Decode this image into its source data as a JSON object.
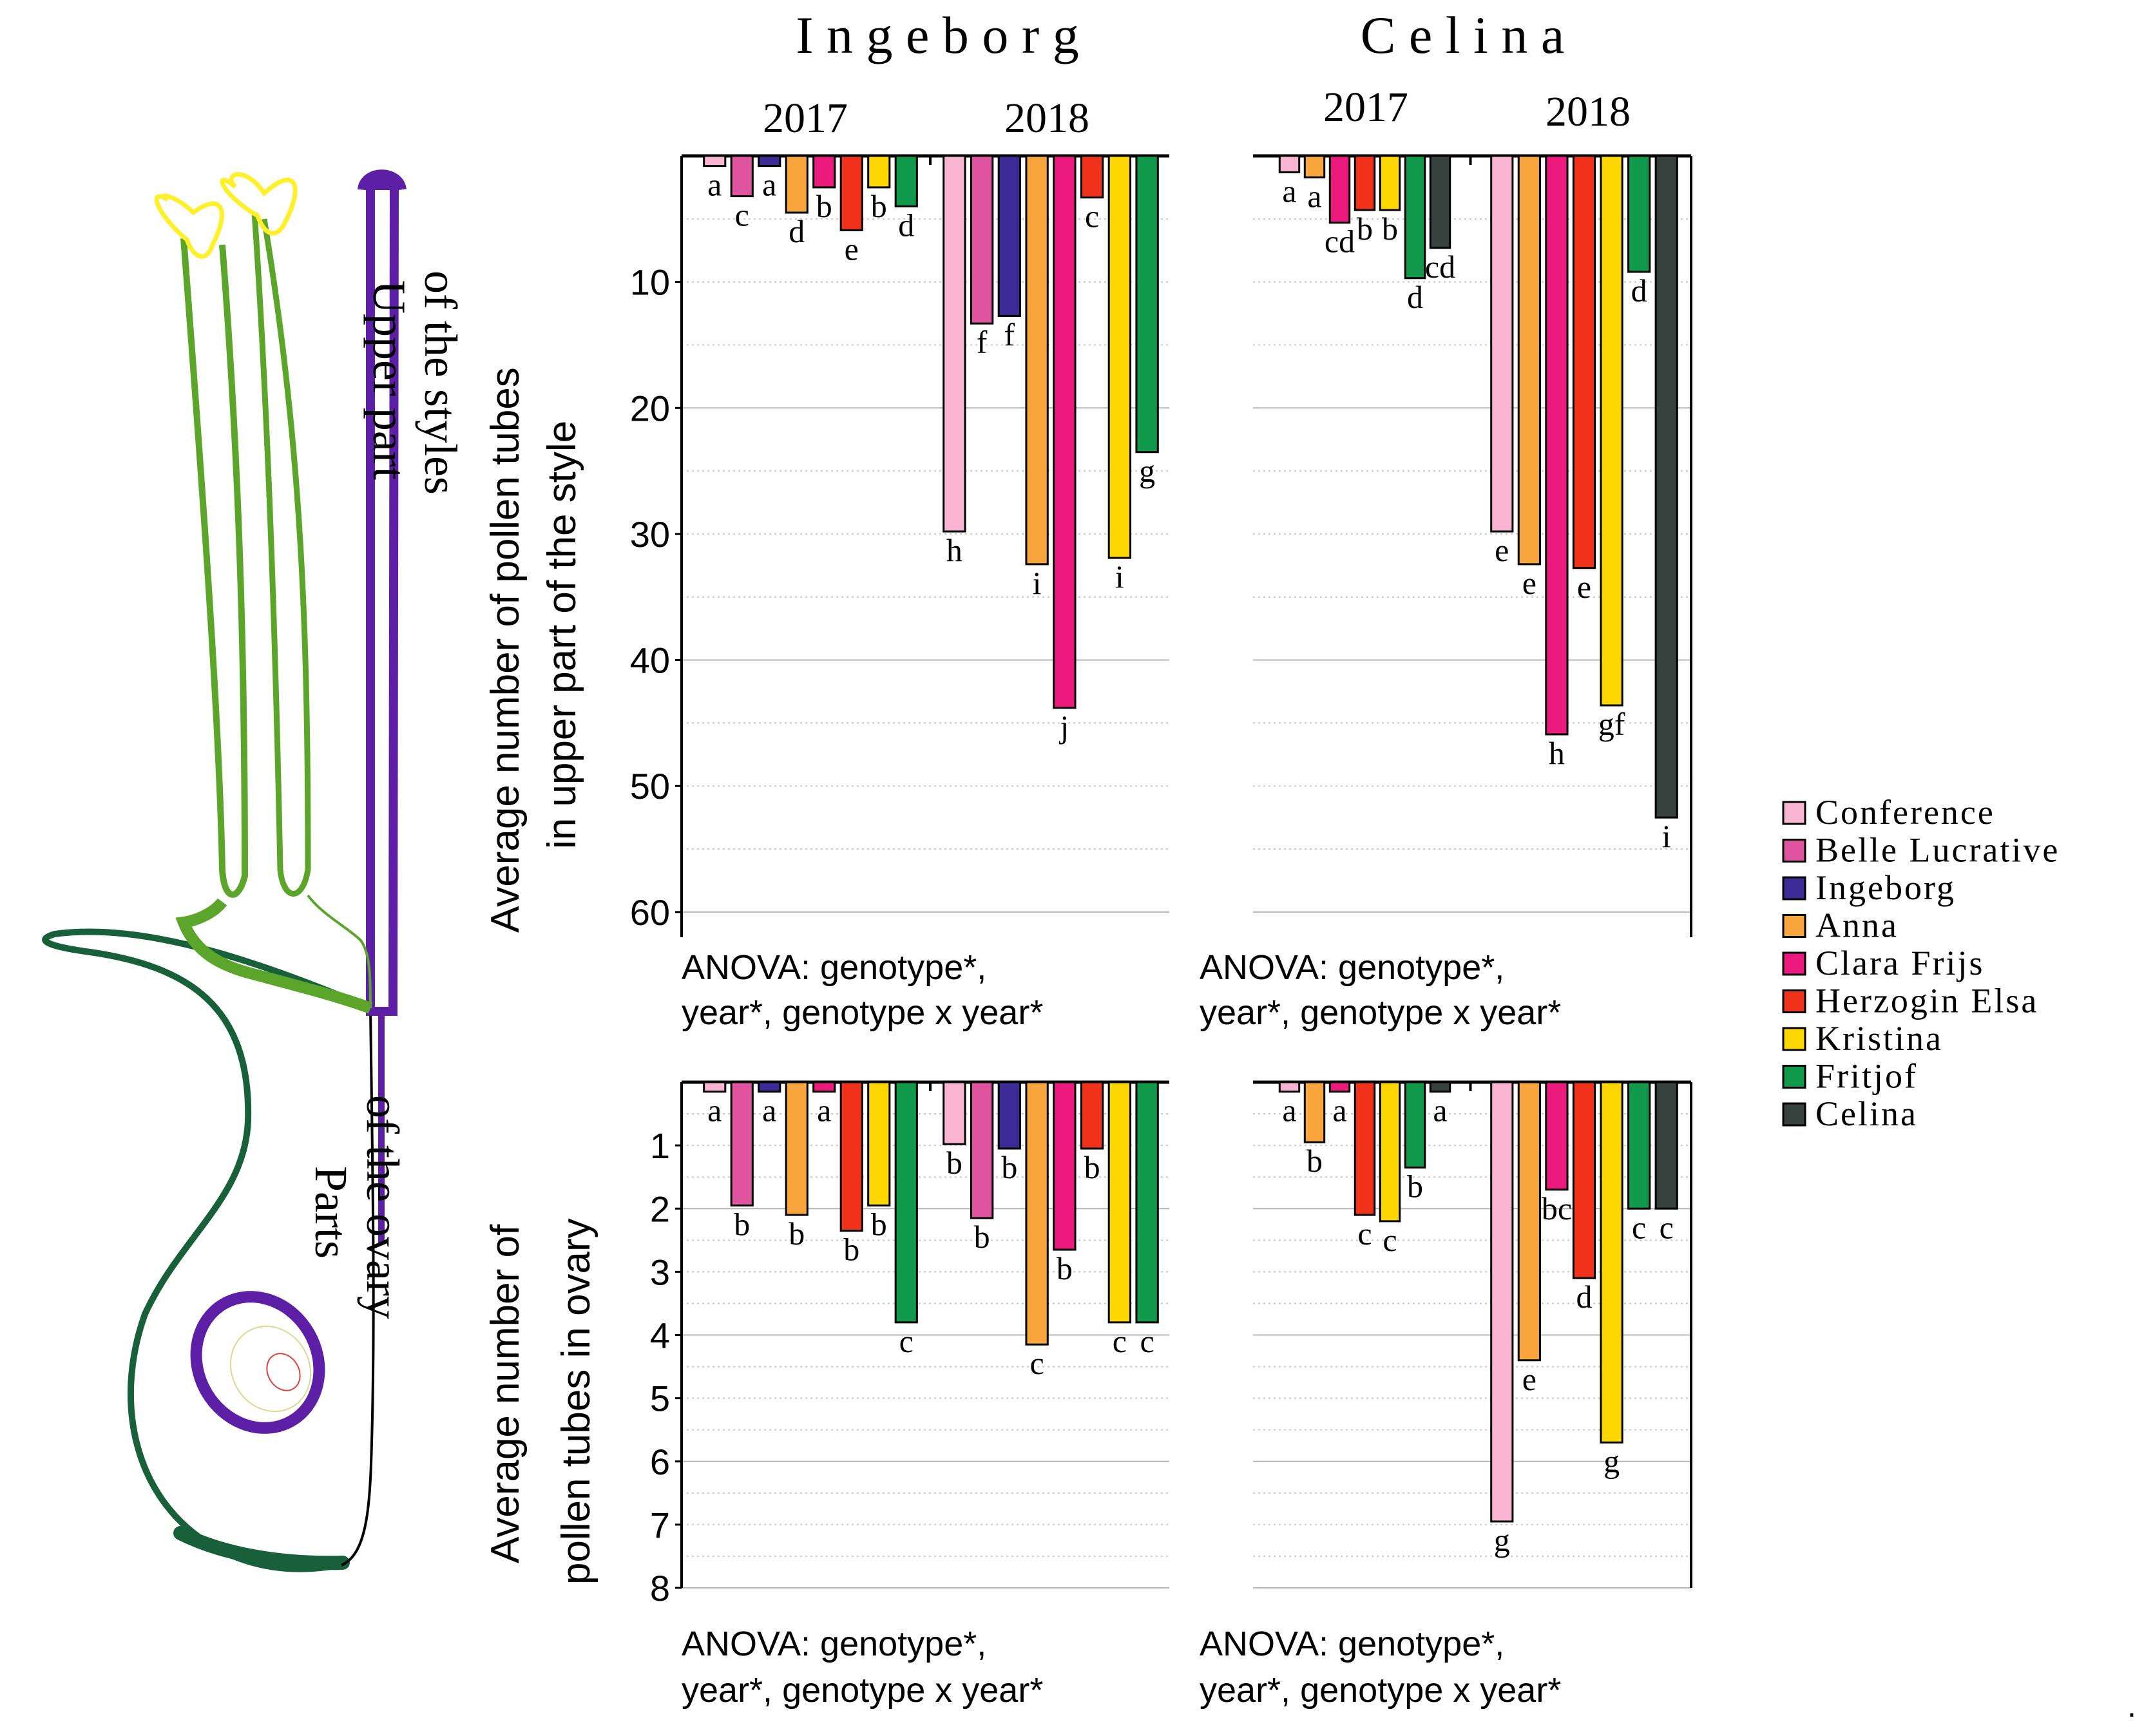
{
  "figure": {
    "cultivar_titles": [
      "I n g e b o r g",
      "C e l i n a"
    ],
    "year_labels": [
      "2017",
      "2018"
    ],
    "y_label_top": [
      "Average number of pollen tubes",
      "in upper part of the style"
    ],
    "y_label_bottom": [
      "Average number of",
      "pollen tubes in ovary"
    ],
    "diagram_labels": {
      "upper_style": [
        "Upper part",
        "of the styles"
      ],
      "ovary": [
        "Parts",
        "of the ovary"
      ]
    },
    "anova_text": [
      "ANOVA: genotype*,",
      "year*, genotype x year*"
    ],
    "trailing_mark": "."
  },
  "legend": [
    {
      "name": "Conference",
      "color": "#f9b4d1"
    },
    {
      "name": "Belle Lucrative",
      "color": "#e0539f"
    },
    {
      "name": "Ingeborg",
      "color": "#3c2a96"
    },
    {
      "name": "Anna",
      "color": "#f7a53c"
    },
    {
      "name": "Clara Frijs",
      "color": "#ec1a7d"
    },
    {
      "name": "Herzogin Elsa",
      "color": "#f0321b"
    },
    {
      "name": "Kristina",
      "color": "#ffd700"
    },
    {
      "name": "Fritjof",
      "color": "#10994a"
    },
    {
      "name": "Celina",
      "color": "#37423f"
    }
  ],
  "chart_data": [
    {
      "id": "ingeborg-style",
      "type": "bar",
      "title": "I n g e b o r g",
      "ylabel": "Average number of pollen tubes in upper part of the style",
      "ylim": [
        0,
        62
      ],
      "y_axis_inverted": true,
      "yticks": [
        10,
        20,
        30,
        40,
        50,
        60
      ],
      "groups": [
        "2017",
        "2018"
      ],
      "series": [
        "Conference",
        "Belle Lucrative",
        "Ingeborg",
        "Anna",
        "Clara Frijs",
        "Herzogin Elsa",
        "Kristina",
        "Fritjof"
      ],
      "values": {
        "2017": [
          0.8,
          3.2,
          0.8,
          4.5,
          2.5,
          5.9,
          2.5,
          4.0
        ],
        "2018": [
          29.8,
          13.3,
          12.7,
          32.4,
          43.8,
          3.3,
          31.9,
          23.5
        ]
      },
      "letters": {
        "2017": [
          "a",
          "c",
          "a",
          "d",
          "b",
          "e",
          "b",
          "d"
        ],
        "2018": [
          "h",
          "f",
          "f",
          "i",
          "j",
          "c",
          "i",
          "g"
        ]
      },
      "note": "ANOVA: genotype*, year*, genotype x year*"
    },
    {
      "id": "celina-style",
      "type": "bar",
      "title": "C e l i n a",
      "ylabel": "Average number of pollen tubes in upper part of the style",
      "ylim": [
        0,
        62
      ],
      "y_axis_inverted": true,
      "yticks": [
        10,
        20,
        30,
        40,
        50,
        60
      ],
      "groups": [
        "2017",
        "2018"
      ],
      "series": [
        "Conference",
        "Anna",
        "Clara Frijs",
        "Herzogin Elsa",
        "Kristina",
        "Fritjof",
        "Celina"
      ],
      "values": {
        "2017": [
          1.3,
          1.7,
          5.3,
          4.3,
          4.3,
          9.7,
          7.3
        ],
        "2018": [
          29.8,
          32.4,
          45.9,
          32.7,
          43.6,
          9.2,
          52.5
        ]
      },
      "letters": {
        "2017": [
          "a",
          "a",
          "cd",
          "b",
          "b",
          "d",
          "cd"
        ],
        "2018": [
          "e",
          "e",
          "h",
          "e",
          "gf",
          "d",
          "i"
        ]
      },
      "note": "ANOVA: genotype*, year*, genotype x year*"
    },
    {
      "id": "ingeborg-ovary",
      "type": "bar",
      "ylabel": "Average number of pollen tubes in ovary",
      "ylim": [
        0,
        8
      ],
      "y_axis_inverted": true,
      "yticks": [
        1,
        2,
        3,
        4,
        5,
        6,
        7,
        8
      ],
      "groups": [
        "2017",
        "2018"
      ],
      "series": [
        "Conference",
        "Belle Lucrative",
        "Ingeborg",
        "Anna",
        "Clara Frijs",
        "Herzogin Elsa",
        "Kristina",
        "Fritjof"
      ],
      "values": {
        "2017": [
          0.15,
          1.95,
          0.15,
          2.1,
          0.15,
          2.35,
          1.95,
          3.8
        ],
        "2018": [
          0.98,
          2.15,
          1.05,
          4.15,
          2.65,
          1.05,
          3.8,
          3.8
        ]
      },
      "letters": {
        "2017": [
          "a",
          "b",
          "a",
          "b",
          "a",
          "b",
          "b",
          "c"
        ],
        "2018": [
          "b",
          "b",
          "b",
          "c",
          "b",
          "b",
          "c",
          "c"
        ]
      },
      "note": "ANOVA: genotype*, year*, genotype x year*"
    },
    {
      "id": "celina-ovary",
      "type": "bar",
      "ylabel": "Average number of pollen tubes in ovary",
      "ylim": [
        0,
        8
      ],
      "y_axis_inverted": true,
      "yticks": [
        1,
        2,
        3,
        4,
        5,
        6,
        7,
        8
      ],
      "groups": [
        "2017",
        "2018"
      ],
      "series": [
        "Conference",
        "Anna",
        "Clara Frijs",
        "Herzogin Elsa",
        "Kristina",
        "Fritjof",
        "Celina"
      ],
      "values": {
        "2017": [
          0.15,
          0.95,
          0.15,
          2.1,
          2.2,
          1.35,
          0.15
        ],
        "2018": [
          6.95,
          4.4,
          1.7,
          3.1,
          5.7,
          2.0,
          2.0
        ]
      },
      "letters": {
        "2017": [
          "a",
          "b",
          "a",
          "c",
          "c",
          "b",
          "a"
        ],
        "2018": [
          "g",
          "e",
          "bc",
          "d",
          "g",
          "c",
          "c"
        ]
      },
      "note": "ANOVA: genotype*, year*, genotype x year*"
    }
  ]
}
